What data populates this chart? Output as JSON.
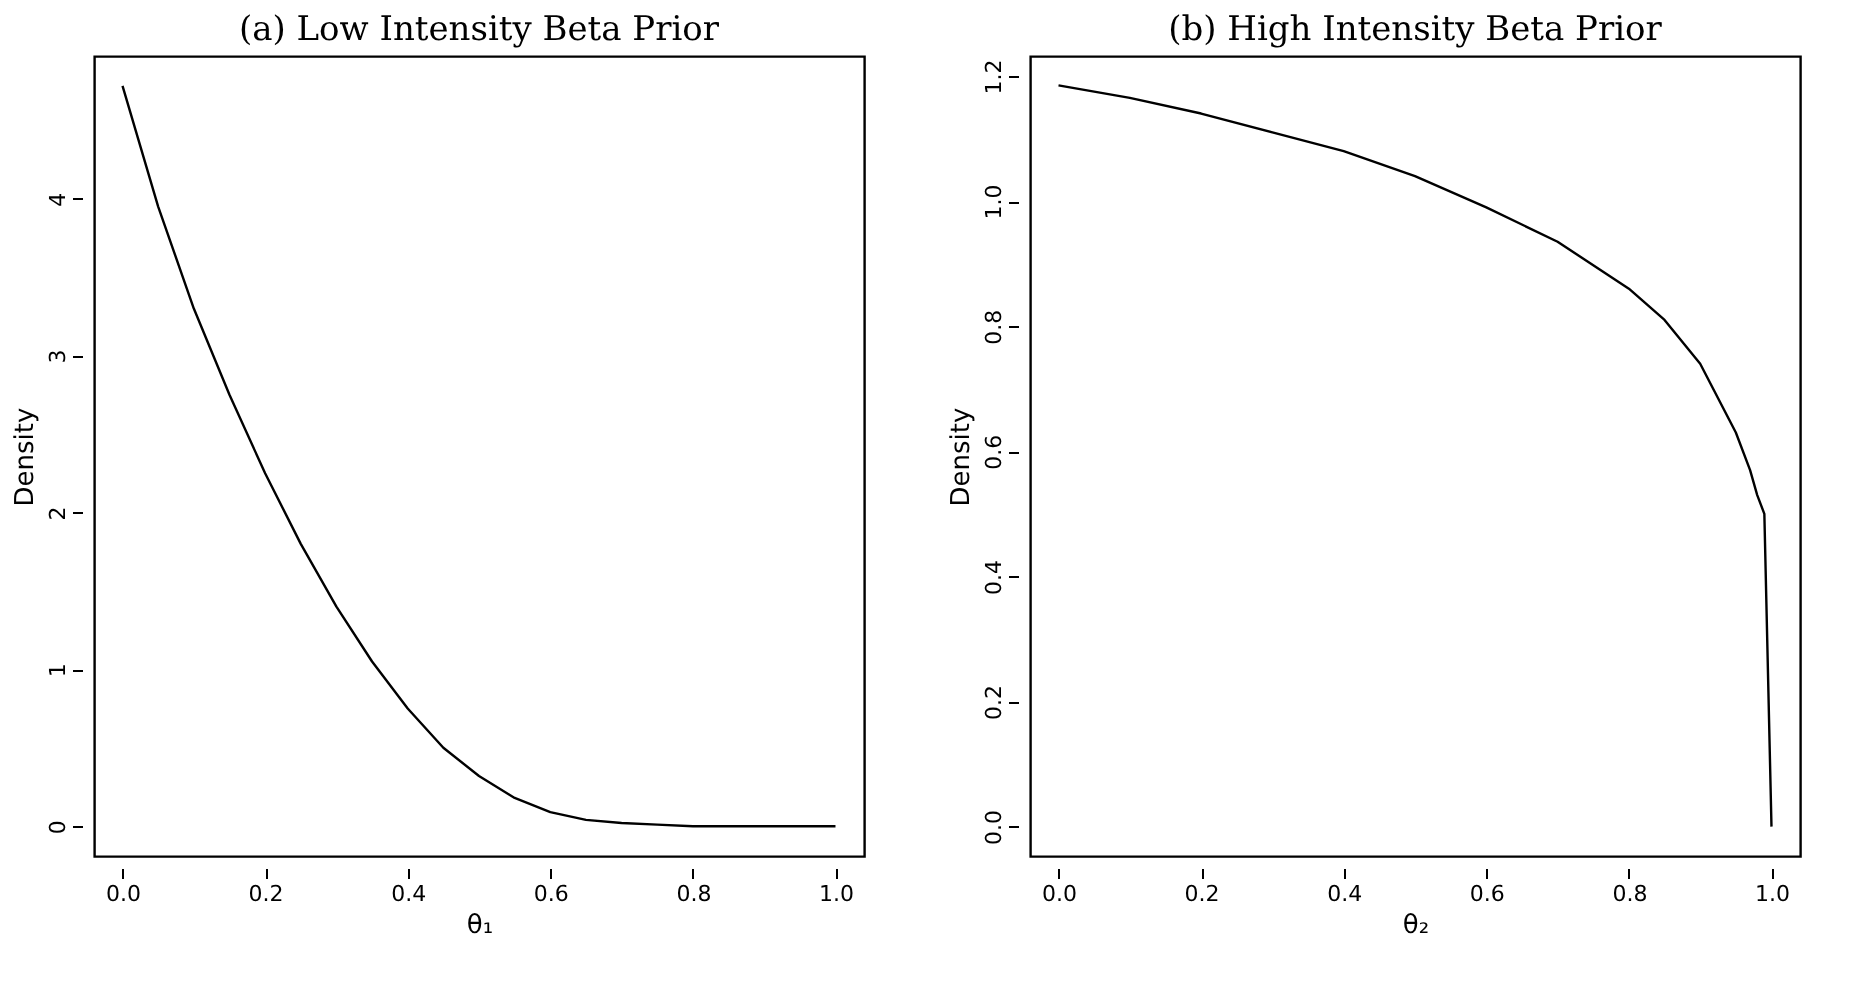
{
  "chart_data": [
    {
      "type": "line",
      "title": "(a) Low Intensity Beta Prior",
      "xlabel": "θ₁",
      "ylabel": "Density",
      "x": [
        0,
        0.05,
        0.1,
        0.15,
        0.2,
        0.25,
        0.3,
        0.35,
        0.4,
        0.45,
        0.5,
        0.55,
        0.6,
        0.65,
        0.7,
        0.75,
        0.8,
        0.9,
        1.0
      ],
      "series": [
        {
          "color": "#000000",
          "values": [
            4.72,
            3.95,
            3.3,
            2.75,
            2.25,
            1.8,
            1.4,
            1.05,
            0.75,
            0.5,
            0.32,
            0.18,
            0.09,
            0.04,
            0.02,
            0.01,
            0,
            0,
            0
          ]
        }
      ],
      "xlim": [
        -0.04,
        1.04
      ],
      "ylim": [
        -0.19,
        4.91
      ],
      "xticks": [
        {
          "value": 0,
          "label": "0.0"
        },
        {
          "value": 0.2,
          "label": "0.2"
        },
        {
          "value": 0.4,
          "label": "0.4"
        },
        {
          "value": 0.6,
          "label": "0.6"
        },
        {
          "value": 0.8,
          "label": "0.8"
        },
        {
          "value": 1,
          "label": "1.0"
        }
      ],
      "yticks": [
        0,
        1,
        2,
        3,
        4
      ],
      "grid": false,
      "legend": false
    },
    {
      "type": "line",
      "title": "(b) High Intensity Beta Prior",
      "xlabel": "θ₂",
      "ylabel": "Density",
      "x": [
        0,
        0.1,
        0.2,
        0.3,
        0.4,
        0.5,
        0.6,
        0.7,
        0.8,
        0.85,
        0.9,
        0.95,
        0.97,
        0.98,
        0.99,
        1.0
      ],
      "series": [
        {
          "color": "#000000",
          "values": [
            1.185,
            1.165,
            1.14,
            1.11,
            1.08,
            1.04,
            0.99,
            0.935,
            0.86,
            0.81,
            0.74,
            0.63,
            0.57,
            0.53,
            0.5,
            0.0
          ]
        }
      ],
      "xlim": [
        -0.04,
        1.04
      ],
      "ylim": [
        -0.047,
        1.232
      ],
      "xticks": [
        {
          "value": 0,
          "label": "0.0"
        },
        {
          "value": 0.2,
          "label": "0.2"
        },
        {
          "value": 0.4,
          "label": "0.4"
        },
        {
          "value": 0.6,
          "label": "0.6"
        },
        {
          "value": 0.8,
          "label": "0.8"
        },
        {
          "value": 1,
          "label": "1.0"
        }
      ],
      "yticks": [
        {
          "value": 0,
          "label": "0.0"
        },
        {
          "value": 0.2,
          "label": "0.2"
        },
        {
          "value": 0.4,
          "label": "0.4"
        },
        {
          "value": 0.6,
          "label": "0.6"
        },
        {
          "value": 0.8,
          "label": "0.8"
        },
        {
          "value": 1,
          "label": "1.0"
        },
        {
          "value": 1.2,
          "label": "1.2"
        }
      ],
      "grid": false,
      "legend": false
    }
  ]
}
